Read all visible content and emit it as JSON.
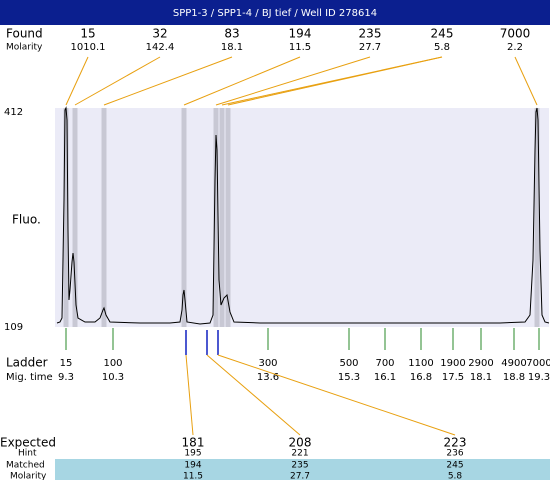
{
  "title": "SPP1-3 / SPP1-4 / BJ tief / Well ID 278614",
  "found": {
    "label": "Found",
    "molarity_label": "Molarity",
    "peaks": [
      {
        "size": 15,
        "molarity": 1010.1
      },
      {
        "size": 32,
        "molarity": 142.4
      },
      {
        "size": 83,
        "molarity": 18.1
      },
      {
        "size": 194,
        "molarity": 11.5
      },
      {
        "size": 235,
        "molarity": 27.7
      },
      {
        "size": 245,
        "molarity": 5.8
      },
      {
        "size": 7000,
        "molarity": 2.2
      }
    ]
  },
  "y_axis": {
    "label": "Fluo.",
    "top": 412,
    "bottom": 109
  },
  "ladder": {
    "label": "Ladder",
    "time_label": "Mig. time",
    "entries": [
      {
        "size": 15,
        "time": 9.3
      },
      {
        "size": 100,
        "time": 10.3
      },
      {
        "size": 300,
        "time": 13.6
      },
      {
        "size": 500,
        "time": 15.3
      },
      {
        "size": 700,
        "time": 16.1
      },
      {
        "size": 1100,
        "time": 16.8
      },
      {
        "size": 1900,
        "time": 17.5
      },
      {
        "size": 2900,
        "time": 18.1
      },
      {
        "size": 4900,
        "time": 18.8
      },
      {
        "size": 7000,
        "time": 19.3
      }
    ]
  },
  "expected": {
    "label": "Expected",
    "hint_label": "Hint",
    "matched_label": "Matched",
    "molarity_label": "Molarity",
    "columns": [
      {
        "expected": 181,
        "hint": 195,
        "matched": 194,
        "molarity": 11.5
      },
      {
        "expected": 208,
        "hint": 221,
        "matched": 235,
        "molarity": 27.7
      },
      {
        "expected": 223,
        "hint": 236,
        "matched": 245,
        "molarity": 5.8
      }
    ]
  }
}
